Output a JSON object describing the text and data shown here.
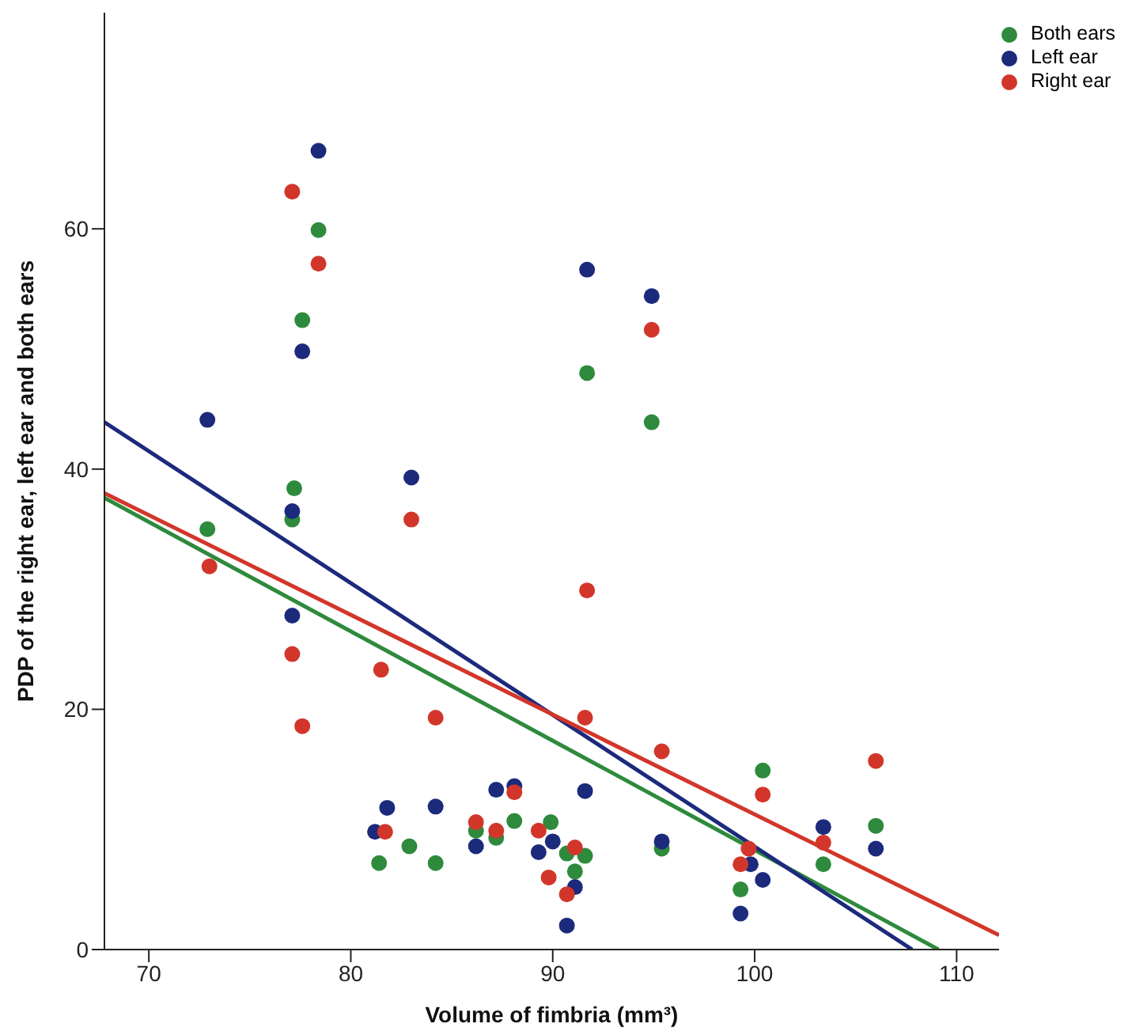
{
  "chart_data": {
    "type": "scatter",
    "xlabel": "Volume of fimbria (mm³)",
    "ylabel": "PDP of the right ear, left ear and both ears",
    "xlim": [
      67.8,
      112.1
    ],
    "xticks": [
      70,
      80,
      90,
      100,
      110
    ],
    "ylim": [
      0,
      78
    ],
    "yticks": [
      0,
      20,
      40,
      60
    ],
    "grid": false,
    "legend": "top right",
    "marker": "circle",
    "series": [
      {
        "name": "Both ears",
        "color": "#2e8a3c",
        "x": [
          72.9,
          77.1,
          77.2,
          77.6,
          78.4,
          81.4,
          82.9,
          84.2,
          86.2,
          87.2,
          88.1,
          89.9,
          90.7,
          91.1,
          91.6,
          95.4,
          99.3,
          100.4,
          103.4,
          106.0,
          91.7,
          94.9
        ],
        "values": [
          35.0,
          35.8,
          38.4,
          52.4,
          59.9,
          7.2,
          8.6,
          7.2,
          9.9,
          9.3,
          10.7,
          10.6,
          8.0,
          6.5,
          7.8,
          8.4,
          5.0,
          14.9,
          7.1,
          10.3,
          48.0,
          43.9
        ]
      },
      {
        "name": "Left ear",
        "color": "#1c2a7c",
        "x": [
          78.4,
          77.6,
          72.9,
          83.0,
          77.1,
          77.1,
          81.8,
          81.2,
          84.2,
          86.2,
          87.2,
          88.1,
          89.3,
          90.0,
          91.1,
          90.7,
          91.6,
          95.4,
          99.8,
          100.4,
          99.3,
          103.4,
          106.0,
          91.7,
          94.9
        ],
        "values": [
          66.5,
          49.8,
          44.1,
          39.3,
          36.5,
          27.8,
          11.8,
          9.8,
          11.9,
          8.6,
          13.3,
          13.6,
          8.1,
          9.0,
          5.2,
          2.0,
          13.2,
          9.0,
          7.1,
          5.8,
          3.0,
          10.2,
          8.4,
          56.6,
          54.4
        ]
      },
      {
        "name": "Right ear",
        "color": "#d2362a",
        "x": [
          77.1,
          78.4,
          83.0,
          73.0,
          77.1,
          81.5,
          84.2,
          77.6,
          81.7,
          86.2,
          87.2,
          88.1,
          89.3,
          89.8,
          91.1,
          90.7,
          91.6,
          95.4,
          99.7,
          99.3,
          100.4,
          103.4,
          106.0,
          91.7,
          94.9
        ],
        "values": [
          63.1,
          57.1,
          35.8,
          31.9,
          24.6,
          23.3,
          19.3,
          18.6,
          9.8,
          10.6,
          9.9,
          13.1,
          9.9,
          6.0,
          8.5,
          4.6,
          19.3,
          16.5,
          8.4,
          7.1,
          12.9,
          8.9,
          15.7,
          29.9,
          51.6
        ]
      },
      {
        "type": "line",
        "color": "#2e8a3c",
        "marker": "none",
        "x": [
          67.8,
          109.1
        ],
        "values": [
          37.6,
          0
        ]
      },
      {
        "type": "line",
        "color": "#1c2a7c",
        "marker": "none",
        "x": [
          67.8,
          107.8
        ],
        "values": [
          43.9,
          0
        ]
      },
      {
        "type": "line",
        "color": "#d2362a",
        "marker": "none",
        "x": [
          67.8,
          112.1
        ],
        "values": [
          38.0,
          1.2
        ]
      }
    ]
  }
}
